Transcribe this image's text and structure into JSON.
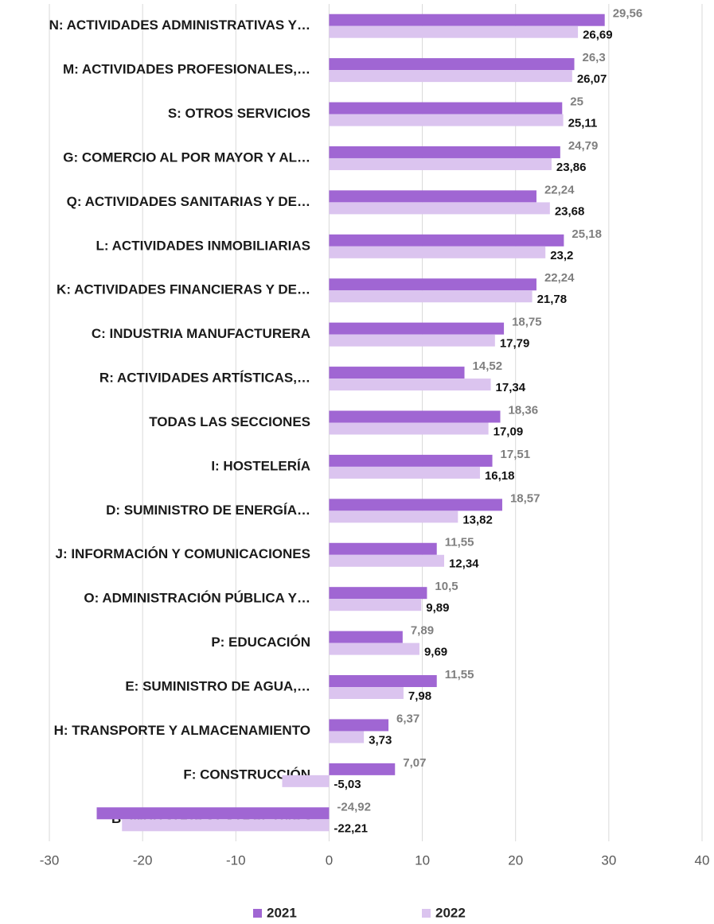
{
  "chart_data": {
    "type": "barh",
    "categories": [
      "N: ACTIVIDADES ADMINISTRATIVAS Y…",
      "M: ACTIVIDADES PROFESIONALES,…",
      "S: OTROS SERVICIOS",
      "G: COMERCIO AL POR MAYOR Y AL…",
      "Q: ACTIVIDADES SANITARIAS Y DE…",
      "L: ACTIVIDADES INMOBILIARIAS",
      "K: ACTIVIDADES FINANCIERAS Y DE…",
      "C: INDUSTRIA MANUFACTURERA",
      "R: ACTIVIDADES ARTÍSTICAS,…",
      "TODAS LAS SECCIONES",
      "I: HOSTELERÍA",
      "D: SUMINISTRO DE ENERGÍA…",
      "J: INFORMACIÓN Y COMUNICACIONES",
      "O: ADMINISTRACIÓN PÚBLICA Y…",
      "P: EDUCACIÓN",
      "E: SUMINISTRO DE AGUA,…",
      "H: TRANSPORTE Y ALMACENAMIENTO",
      "F: CONSTRUCCIÓN",
      "B: INDUSTRIAS EXTRACTIVAS"
    ],
    "series": [
      {
        "name": "2021",
        "color": "#a066d3",
        "values": [
          29.56,
          26.3,
          25,
          24.79,
          22.24,
          25.18,
          22.24,
          18.75,
          14.52,
          18.36,
          17.51,
          18.57,
          11.55,
          10.5,
          7.89,
          11.55,
          6.37,
          7.07,
          -24.92
        ],
        "value_labels": [
          "29,56",
          "26,3",
          "25",
          "24,79",
          "22,24",
          "25,18",
          "22,24",
          "18,75",
          "14,52",
          "18,36",
          "17,51",
          "18,57",
          "11,55",
          "10,5",
          "7,89",
          "11,55",
          "6,37",
          "7,07",
          "-24,92"
        ]
      },
      {
        "name": "2022",
        "color": "#dbc4ef",
        "values": [
          26.69,
          26.07,
          25.11,
          23.86,
          23.68,
          23.2,
          21.78,
          17.79,
          17.34,
          17.09,
          16.18,
          13.82,
          12.34,
          9.89,
          9.69,
          7.98,
          3.73,
          -5.03,
          -22.21
        ],
        "value_labels": [
          "26,69",
          "26,07",
          "25,11",
          "23,86",
          "23,68",
          "23,2",
          "21,78",
          "17,79",
          "17,34",
          "17,09",
          "16,18",
          "13,82",
          "12,34",
          "9,89",
          "9,69",
          "7,98",
          "3,73",
          "-5,03",
          "-22,21"
        ]
      }
    ],
    "xlim": [
      -30,
      40
    ],
    "xticks": [
      -30,
      -20,
      -10,
      0,
      10,
      20,
      30,
      40
    ],
    "grid": true,
    "legend": "bottom"
  }
}
